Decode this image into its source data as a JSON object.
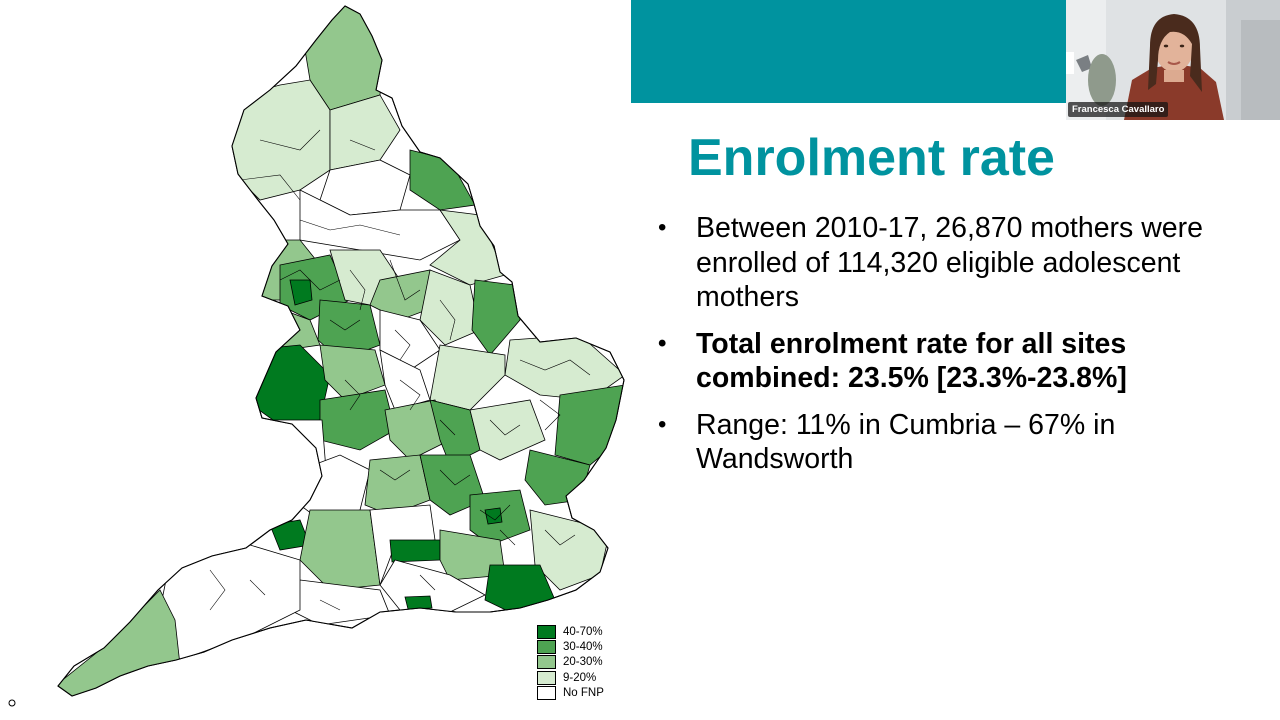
{
  "slide": {
    "title": "Enrolment rate",
    "bullets": [
      {
        "text": "Between 2010-17, 26,870 mothers were enrolled of 114,320 eligible adolescent mothers",
        "bold": false
      },
      {
        "text": "Total enrolment rate for all sites combined: 23.5% [23.3%-23.8%]",
        "bold": true
      },
      {
        "text": "Range: 11% in Cumbria – 67% in Wandsworth",
        "bold": false
      }
    ],
    "bullet_char": "•"
  },
  "map": {
    "legend": [
      {
        "label": "40-70%",
        "color": "#007a1f"
      },
      {
        "label": "30-40%",
        "color": "#4ea352"
      },
      {
        "label": "20-30%",
        "color": "#93c78d"
      },
      {
        "label": "9-20%",
        "color": "#d6ebd0"
      },
      {
        "label": "No FNP",
        "color": "#ffffff"
      }
    ]
  },
  "webcam": {
    "participant_name": "Francesca Cavallaro"
  },
  "colors": {
    "accent": "#00939f",
    "text": "#000000"
  }
}
